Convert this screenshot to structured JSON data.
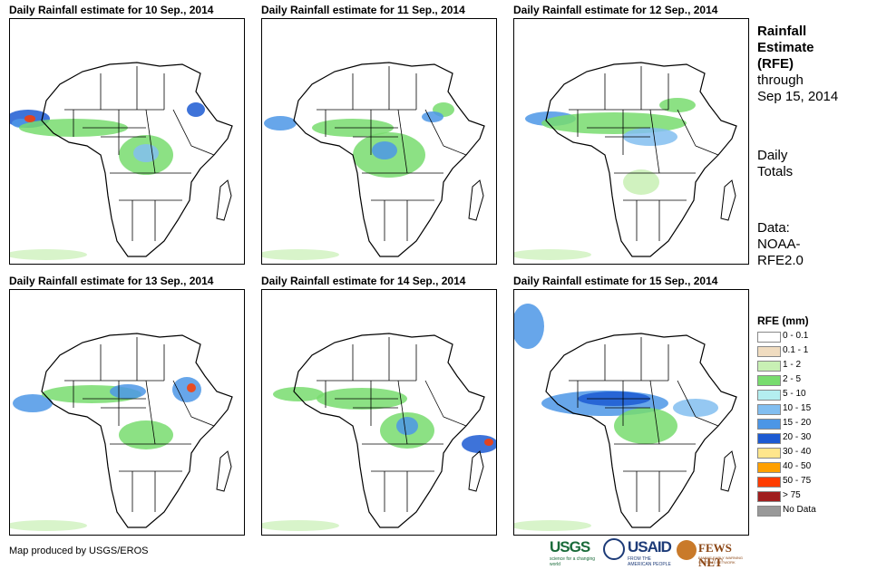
{
  "panels": [
    {
      "title": "Daily Rainfall estimate for 10 Sep., 2014"
    },
    {
      "title": "Daily Rainfall estimate for 11 Sep., 2014"
    },
    {
      "title": "Daily Rainfall estimate for 12 Sep., 2014"
    },
    {
      "title": "Daily Rainfall estimate for 13 Sep., 2014"
    },
    {
      "title": "Daily Rainfall estimate for 14 Sep., 2014"
    },
    {
      "title": "Daily Rainfall estimate for 15 Sep., 2014"
    }
  ],
  "sidebar": {
    "title_line1": "Rainfall",
    "title_line2": "Estimate",
    "title_line3": "(RFE)",
    "through_label": "through",
    "through_date": "Sep 15, 2014",
    "totals_line1": "Daily",
    "totals_line2": "Totals",
    "data_line1": "Data:",
    "data_line2": "NOAA-",
    "data_line3": "RFE2.0"
  },
  "legend": {
    "title": "RFE (mm)",
    "items": [
      {
        "label": "0 - 0.1",
        "color": "#ffffff"
      },
      {
        "label": "0.1 - 1",
        "color": "#f0dcc0"
      },
      {
        "label": "1 - 2",
        "color": "#c8f0b4"
      },
      {
        "label": "2 - 5",
        "color": "#78dc6e"
      },
      {
        "label": "5 - 10",
        "color": "#b4eef0"
      },
      {
        "label": "10 - 15",
        "color": "#82bef0"
      },
      {
        "label": "15 - 20",
        "color": "#4c96e6"
      },
      {
        "label": "20 - 30",
        "color": "#1c5ad2"
      },
      {
        "label": "30 - 40",
        "color": "#ffe68c"
      },
      {
        "label": "40 - 50",
        "color": "#ffa000"
      },
      {
        "label": "50 - 75",
        "color": "#ff3c00"
      },
      {
        "label": "> 75",
        "color": "#a01e1e"
      },
      {
        "label": "No Data",
        "color": "#999999"
      }
    ]
  },
  "footer": {
    "credit": "Map produced by USGS/EROS",
    "logo_usgs": "USGS",
    "logo_usgs_tag": "science for a changing world",
    "logo_usaid": "USAID",
    "logo_usaid_tag": "FROM THE AMERICAN PEOPLE",
    "logo_fews": "FEWS NET",
    "logo_fews_tag": "FAMINE EARLY WARNING SYSTEMS NETWORK"
  }
}
